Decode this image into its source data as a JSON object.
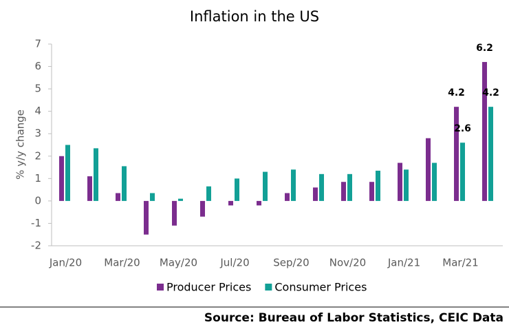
{
  "chart_data": {
    "type": "bar",
    "title": "Inflation in the US",
    "y_label": "% y/y change",
    "categories": [
      "Jan/20",
      null,
      "Mar/20",
      null,
      "May/20",
      null,
      "Jul/20",
      null,
      "Sep/20",
      null,
      "Nov/20",
      null,
      "Jan/21",
      null,
      "Mar/21",
      null
    ],
    "series": [
      {
        "name": "Producer Prices",
        "color": "#7b2d8e",
        "values": [
          2.0,
          1.1,
          0.35,
          -1.5,
          -1.1,
          -0.7,
          -0.2,
          -0.2,
          0.35,
          0.6,
          0.85,
          0.85,
          1.7,
          2.8,
          4.2,
          6.2
        ],
        "value_labels": [
          null,
          null,
          null,
          null,
          null,
          null,
          null,
          null,
          null,
          null,
          null,
          null,
          null,
          null,
          "4.2",
          "6.2"
        ]
      },
      {
        "name": "Consumer Prices",
        "color": "#12a096",
        "values": [
          2.5,
          2.35,
          1.55,
          0.35,
          0.1,
          0.65,
          1.0,
          1.3,
          1.4,
          1.2,
          1.2,
          1.35,
          1.4,
          1.7,
          2.6,
          4.2
        ],
        "value_labels": [
          null,
          null,
          null,
          null,
          null,
          null,
          null,
          null,
          null,
          null,
          null,
          null,
          null,
          null,
          "2.6",
          "4.2"
        ]
      }
    ],
    "ylim": [
      -2,
      7
    ],
    "yticks": [
      -2,
      -1,
      0,
      1,
      2,
      3,
      4,
      5,
      6,
      7
    ],
    "legend": "bottom",
    "source": "Source: Bureau of Labor Statistics, CEIC Data"
  }
}
